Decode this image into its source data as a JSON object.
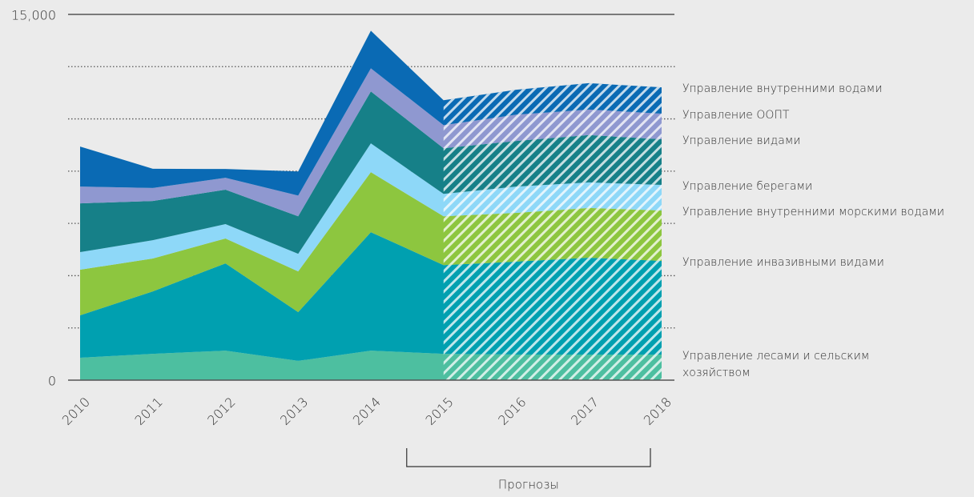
{
  "chart_data": {
    "type": "stacked_area",
    "categories": [
      "2010",
      "2011",
      "2012",
      "2013",
      "2014",
      "2015",
      "2016",
      "2017",
      "2018"
    ],
    "series": [
      {
        "name": "Управление лесами и сельским хозяйством",
        "color": "#4dbfa0",
        "values": [
          920,
          1080,
          1210,
          790,
          1210,
          1080,
          1050,
          1050,
          1050
        ]
      },
      {
        "name": "Управление инвазивными видами",
        "color": "#00a0b0",
        "values": [
          1740,
          2560,
          3580,
          2000,
          4860,
          3640,
          3810,
          3970,
          3840
        ]
      },
      {
        "name": "Управление внутренними морскими водами",
        "color": "#8dc63f",
        "values": [
          1870,
          1350,
          1020,
          1670,
          2460,
          2000,
          2000,
          2040,
          2070
        ]
      },
      {
        "name": "Управление берегами",
        "color": "#8ed8f8",
        "values": [
          720,
          750,
          590,
          720,
          1180,
          920,
          1080,
          1050,
          1050
        ]
      },
      {
        "name": "Управление видами",
        "color": "#168088",
        "values": [
          2000,
          1610,
          1410,
          1540,
          2130,
          1870,
          1870,
          1940,
          1870
        ]
      },
      {
        "name": "Управление ООПТ",
        "color": "#8f98d0",
        "values": [
          690,
          530,
          490,
          850,
          950,
          950,
          1080,
          1050,
          1050
        ]
      },
      {
        "name": "Управление внутренними водами",
        "color": "#0a6ab4",
        "values": [
          1640,
          790,
          360,
          990,
          1540,
          1020,
          1020,
          1080,
          1080
        ]
      }
    ],
    "ylim": [
      0,
      15000
    ],
    "yticks": [
      0,
      {
        "value": 15000,
        "label": "15,000"
      }
    ],
    "forecast_label": "Прогнозы",
    "forecast_from": "2015",
    "hatched_forecast": true
  }
}
